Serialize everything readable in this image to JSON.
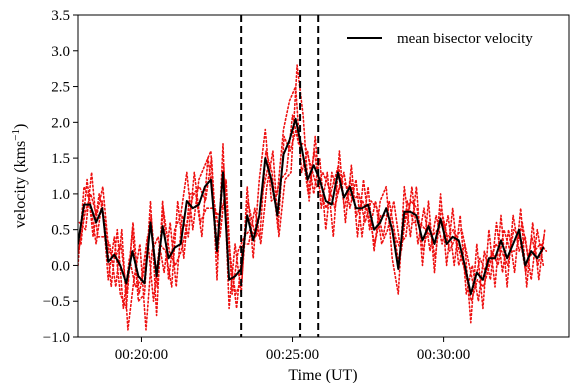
{
  "chart_data": {
    "type": "line",
    "xlabel": "Time (UT)",
    "ylabel": "velocity (kms",
    "ylabel_sup": "−1",
    "ylabel_close": ")",
    "ylim": [
      -1.0,
      3.5
    ],
    "xlim_minutes": [
      17.9,
      34.15
    ],
    "yticks": [
      -1.0,
      -0.5,
      0.0,
      0.5,
      1.0,
      1.5,
      2.0,
      2.5,
      3.0,
      3.5
    ],
    "ytick_labels": [
      "−1.0",
      "−0.5",
      "0.0",
      "0.5",
      "1.0",
      "1.5",
      "2.0",
      "2.5",
      "3.0",
      "3.5"
    ],
    "xticks_minutes": [
      20,
      25,
      30
    ],
    "xtick_labels": [
      "00:20:00",
      "00:25:00",
      "00:30:00"
    ],
    "vlines_minutes": [
      23.3,
      25.25,
      25.85
    ],
    "legend": {
      "placement": "top-right",
      "label": "mean bisector velocity"
    },
    "colors": {
      "mean": "#000000",
      "bisector": "#ee1111"
    },
    "series": [
      {
        "name": "mean bisector velocity",
        "style": "solid",
        "x_start_minutes": 17.9,
        "x_step_minutes": 0.2,
        "values": [
          0.3,
          0.85,
          0.85,
          0.6,
          0.8,
          0.05,
          0.15,
          0.0,
          -0.25,
          0.2,
          -0.15,
          -0.25,
          0.6,
          -0.15,
          0.55,
          0.1,
          0.25,
          0.3,
          0.9,
          0.8,
          0.85,
          1.1,
          1.2,
          0.2,
          1.3,
          -0.2,
          -0.15,
          -0.05,
          0.7,
          0.35,
          0.7,
          1.5,
          1.2,
          0.7,
          1.55,
          1.75,
          2.05,
          1.65,
          1.2,
          1.4,
          1.2,
          0.9,
          0.85,
          1.3,
          0.95,
          1.1,
          0.8,
          0.8,
          0.85,
          0.5,
          0.6,
          0.8,
          0.5,
          -0.05,
          0.75,
          0.75,
          0.7,
          0.35,
          0.55,
          0.3,
          0.65,
          0.3,
          0.4,
          0.35,
          0.0,
          -0.4,
          -0.1,
          -0.2,
          0.1,
          0.1,
          0.35,
          0.1,
          0.3,
          0.5,
          0.0,
          0.2,
          0.1,
          0.25
        ]
      },
      {
        "style": "dotted",
        "x_start_minutes": 17.9,
        "x_step_minutes": 0.2,
        "values": [
          0.0,
          1.1,
          0.9,
          0.3,
          0.9,
          -0.2,
          0.4,
          -0.4,
          -0.6,
          0.5,
          -0.5,
          -0.4,
          0.9,
          -0.7,
          0.9,
          -0.2,
          0.5,
          0.7,
          1.3,
          0.5,
          1.2,
          1.4,
          1.6,
          -0.2,
          1.7,
          -0.6,
          0.3,
          -0.4,
          1.1,
          0.1,
          1.2,
          1.9,
          0.9,
          1.0,
          1.9,
          2.3,
          2.5,
          1.3,
          1.6,
          1.0,
          1.5,
          0.5,
          1.3,
          1.0,
          1.3,
          0.8,
          1.2,
          0.4,
          1.1,
          0.2,
          0.9,
          1.1,
          0.1,
          -0.4,
          1.1,
          0.4,
          1.1,
          0.0,
          0.9,
          -0.1,
          1.0,
          0.0,
          0.8,
          0.0,
          0.3,
          -0.8,
          0.3,
          -0.6,
          0.5,
          -0.3,
          0.7,
          -0.3,
          0.7,
          0.2,
          0.4,
          -0.2,
          0.5,
          0.0
        ]
      },
      {
        "style": "dotted",
        "x_start_minutes": 17.95,
        "x_step_minutes": 0.2,
        "values": [
          0.6,
          0.5,
          1.3,
          0.4,
          0.4,
          0.3,
          -0.3,
          0.5,
          -0.9,
          -0.2,
          0.3,
          -0.9,
          0.2,
          0.4,
          -0.1,
          0.6,
          -0.3,
          0.7,
          0.4,
          1.3,
          0.6,
          0.8,
          0.8,
          0.7,
          0.9,
          0.1,
          -0.6,
          0.3,
          0.3,
          0.8,
          0.3,
          1.1,
          1.6,
          0.4,
          1.2,
          1.3,
          2.8,
          2.1,
          0.9,
          1.8,
          0.8,
          1.3,
          0.4,
          1.6,
          0.6,
          1.4,
          0.4,
          1.2,
          0.5,
          0.9,
          0.3,
          0.5,
          0.9,
          0.3,
          0.4,
          1.1,
          0.3,
          0.8,
          0.2,
          0.7,
          0.3,
          0.7,
          0.0,
          0.7,
          -0.4,
          0.0,
          -0.5,
          0.2,
          -0.2,
          0.6,
          -0.1,
          0.5,
          -0.1,
          0.8,
          -0.3,
          0.6,
          -0.2,
          0.5
        ]
      },
      {
        "style": "dotted",
        "x_start_minutes": 18.0,
        "x_step_minutes": 0.2,
        "values": [
          0.3,
          1.2,
          0.4,
          1.0,
          0.6,
          -0.3,
          0.5,
          -0.6,
          0.1,
          -0.3,
          -0.2,
          0.4,
          -0.5,
          0.3,
          0.2,
          -0.3,
          0.9,
          0.1,
          1.0,
          1.0,
          0.4,
          1.5,
          0.9,
          0.4,
          1.2,
          -0.4,
          0.2,
          0.4,
          0.5,
          0.4,
          1.0,
          1.4,
          0.9,
          1.2,
          1.3,
          2.1,
          1.7,
          1.7,
          1.4,
          1.1,
          1.3,
          1.1,
          0.8,
          1.2,
          1.1,
          0.9,
          1.0,
          0.6,
          0.9,
          0.8,
          0.4,
          0.9,
          0.4,
          0.2,
          0.9,
          0.6,
          0.6,
          0.5,
          0.4,
          0.5,
          0.6,
          0.2,
          0.4,
          0.5,
          0.1,
          -0.3,
          0.1,
          -0.1,
          0.2,
          0.0,
          0.5,
          0.2,
          0.2,
          0.6,
          0.1,
          0.2,
          0.3,
          0.2
        ]
      },
      {
        "style": "dotted",
        "x_start_minutes": 17.92,
        "x_step_minutes": 0.2,
        "values": [
          0.2,
          0.7,
          1.0,
          0.7,
          1.1,
          0.2,
          0.1,
          0.3,
          -0.4,
          0.6,
          -0.4,
          0.0,
          0.7,
          -0.3,
          0.8,
          0.2,
          0.0,
          0.2,
          0.6,
          1.0,
          1.1,
          0.9,
          1.5,
          0.1,
          1.4,
          0.1,
          -0.4,
          -0.2,
          0.9,
          0.5,
          0.4,
          1.6,
          1.3,
          0.5,
          1.8,
          1.6,
          1.9,
          1.6,
          1.0,
          1.6,
          1.0,
          0.8,
          1.1,
          1.4,
          0.8,
          1.2,
          0.7,
          0.9,
          0.7,
          0.3,
          0.7,
          0.7,
          0.6,
          0.0,
          0.6,
          0.9,
          0.8,
          0.2,
          0.6,
          0.1,
          0.8,
          0.4,
          0.5,
          0.2,
          -0.1,
          -0.5,
          -0.2,
          -0.3,
          0.0,
          0.3,
          0.2,
          0.0,
          0.5,
          0.4,
          -0.1,
          0.4,
          0.0,
          0.4
        ]
      }
    ]
  }
}
